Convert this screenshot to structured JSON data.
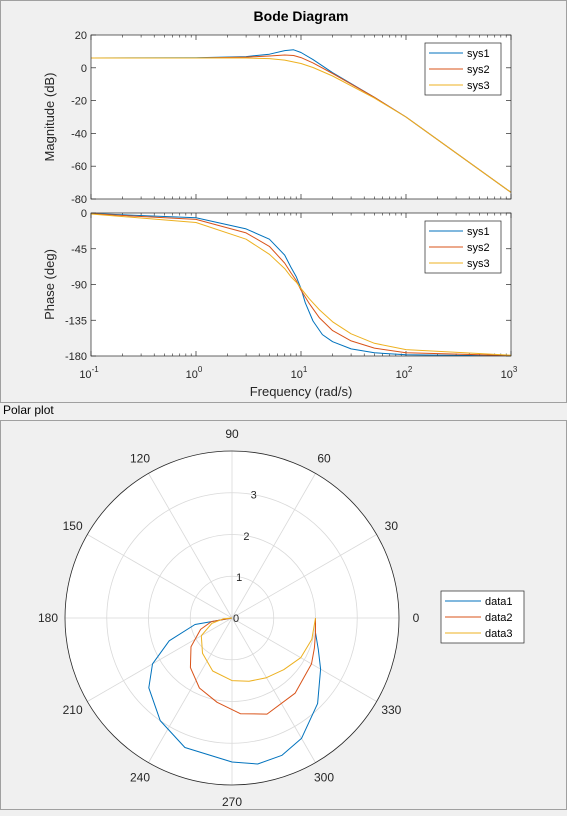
{
  "polar_section_title": "Polar plot",
  "chart_data": [
    {
      "type": "line",
      "subplot": "magnitude",
      "title": "Bode Diagram",
      "xlabel": "",
      "ylabel": "Magnitude (dB)",
      "xscale": "log",
      "xlim": [
        0.1,
        1000
      ],
      "ylim": [
        -80,
        20
      ],
      "yticks": [
        20,
        0,
        -20,
        -40,
        -60,
        -80
      ],
      "legend": "top-right",
      "series": [
        {
          "name": "sys1",
          "color": "#0072bd",
          "points": [
            [
              0.1,
              6
            ],
            [
              1,
              6.1
            ],
            [
              3,
              6.8
            ],
            [
              5,
              8.3
            ],
            [
              7,
              10.5
            ],
            [
              8.5,
              11
            ],
            [
              10,
              9.3
            ],
            [
              13,
              5
            ],
            [
              20,
              -3
            ],
            [
              50,
              -18
            ],
            [
              100,
              -30
            ],
            [
              1000,
              -76
            ]
          ]
        },
        {
          "name": "sys2",
          "color": "#d95319",
          "points": [
            [
              0.1,
              6
            ],
            [
              1,
              6
            ],
            [
              3,
              6.5
            ],
            [
              5,
              7.2
            ],
            [
              7,
              7.8
            ],
            [
              8.5,
              7.5
            ],
            [
              10,
              6.2
            ],
            [
              13,
              3
            ],
            [
              20,
              -3.5
            ],
            [
              50,
              -18
            ],
            [
              100,
              -30
            ],
            [
              1000,
              -76
            ]
          ]
        },
        {
          "name": "sys3",
          "color": "#edb120",
          "points": [
            [
              0.1,
              6
            ],
            [
              1,
              6
            ],
            [
              3,
              6
            ],
            [
              5,
              5.6
            ],
            [
              7,
              4.7
            ],
            [
              10,
              2.6
            ],
            [
              13,
              0.2
            ],
            [
              20,
              -5
            ],
            [
              50,
              -18.5
            ],
            [
              100,
              -30
            ],
            [
              1000,
              -76
            ]
          ]
        }
      ]
    },
    {
      "type": "line",
      "subplot": "phase",
      "title": "",
      "xlabel": "Frequency  (rad/s)",
      "ylabel": "Phase (deg)",
      "xscale": "log",
      "xlim": [
        0.1,
        1000
      ],
      "ylim": [
        -180,
        0
      ],
      "yticks": [
        0,
        -45,
        -90,
        -135,
        -180
      ],
      "xticklabels": [
        {
          "base": "10",
          "exp": "-1"
        },
        {
          "base": "10",
          "exp": "0"
        },
        {
          "base": "10",
          "exp": "1"
        },
        {
          "base": "10",
          "exp": "2"
        },
        {
          "base": "10",
          "exp": "3"
        }
      ],
      "legend": "top-right",
      "series": [
        {
          "name": "sys1",
          "color": "#0072bd",
          "points": [
            [
              0.1,
              -0.6
            ],
            [
              1,
              -6
            ],
            [
              3,
              -20
            ],
            [
              5,
              -33
            ],
            [
              7,
              -53
            ],
            [
              8,
              -68
            ],
            [
              9,
              -80
            ],
            [
              10,
              -95
            ],
            [
              11,
              -113
            ],
            [
              13,
              -136
            ],
            [
              16,
              -153
            ],
            [
              20,
              -162
            ],
            [
              30,
              -171
            ],
            [
              50,
              -176
            ],
            [
              100,
              -178.5
            ],
            [
              1000,
              -180
            ]
          ]
        },
        {
          "name": "sys2",
          "color": "#d95319",
          "points": [
            [
              0.1,
              -1
            ],
            [
              1,
              -8
            ],
            [
              3,
              -25
            ],
            [
              5,
              -42
            ],
            [
              7,
              -63
            ],
            [
              8,
              -75
            ],
            [
              9,
              -85
            ],
            [
              10,
              -97
            ],
            [
              12,
              -114
            ],
            [
              15,
              -132
            ],
            [
              20,
              -148
            ],
            [
              30,
              -161
            ],
            [
              50,
              -170
            ],
            [
              100,
              -176
            ],
            [
              1000,
              -179.5
            ]
          ]
        },
        {
          "name": "sys3",
          "color": "#edb120",
          "points": [
            [
              0.1,
              -1.3
            ],
            [
              1,
              -12
            ],
            [
              3,
              -33
            ],
            [
              5,
              -52
            ],
            [
              7,
              -70
            ],
            [
              8,
              -80
            ],
            [
              9,
              -87
            ],
            [
              10,
              -95
            ],
            [
              12,
              -108
            ],
            [
              15,
              -122
            ],
            [
              20,
              -137
            ],
            [
              30,
              -152
            ],
            [
              50,
              -164
            ],
            [
              100,
              -172
            ],
            [
              1000,
              -179
            ]
          ]
        }
      ]
    },
    {
      "type": "line",
      "subplot": "polar",
      "title": "",
      "rlim": [
        0,
        4
      ],
      "rticks": [
        1,
        2,
        3
      ],
      "theta_ticks": [
        0,
        30,
        60,
        90,
        120,
        150,
        180,
        210,
        240,
        270,
        300,
        330
      ],
      "legend": "right",
      "series": [
        {
          "name": "data1",
          "color": "#0072bd",
          "points": [
            [
              0,
              2
            ],
            [
              -10,
              2.03
            ],
            [
              -20,
              2.2
            ],
            [
              -30,
              2.45
            ],
            [
              -45,
              2.9
            ],
            [
              -60,
              3.33
            ],
            [
              -70,
              3.5
            ],
            [
              -80,
              3.55
            ],
            [
              -90,
              3.45
            ],
            [
              -110,
              3.3
            ],
            [
              -125,
              3.0
            ],
            [
              -140,
              2.6
            ],
            [
              -150,
              2.2
            ],
            [
              -160,
              1.6
            ],
            [
              -170,
              0.9
            ],
            [
              -180,
              0
            ]
          ]
        },
        {
          "name": "data2",
          "color": "#d95319",
          "points": [
            [
              0,
              2
            ],
            [
              -10,
              2.03
            ],
            [
              -20,
              2.1
            ],
            [
              -30,
              2.2
            ],
            [
              -50,
              2.35
            ],
            [
              -70,
              2.45
            ],
            [
              -85,
              2.3
            ],
            [
              -100,
              2.05
            ],
            [
              -115,
              1.85
            ],
            [
              -130,
              1.55
            ],
            [
              -145,
              1.2
            ],
            [
              -160,
              0.8
            ],
            [
              -170,
              0.5
            ],
            [
              -180,
              0
            ]
          ]
        },
        {
          "name": "data3",
          "color": "#edb120",
          "points": [
            [
              0,
              2
            ],
            [
              -15,
              1.98
            ],
            [
              -30,
              1.9
            ],
            [
              -45,
              1.75
            ],
            [
              -60,
              1.65
            ],
            [
              -75,
              1.57
            ],
            [
              -90,
              1.5
            ],
            [
              -110,
              1.35
            ],
            [
              -130,
              1.1
            ],
            [
              -150,
              0.85
            ],
            [
              -165,
              0.5
            ],
            [
              -175,
              0.2
            ],
            [
              -180,
              0
            ]
          ]
        }
      ]
    }
  ]
}
